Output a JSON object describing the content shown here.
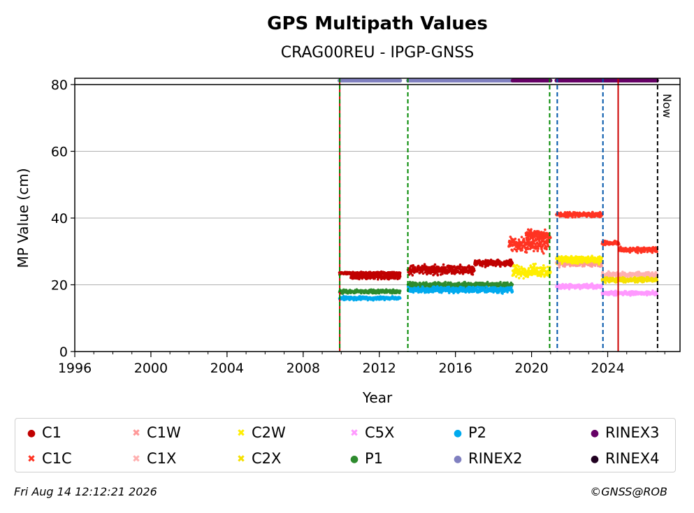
{
  "chart_data": {
    "type": "scatter",
    "title": "GPS Multipath Values",
    "subtitle": "CRAG00REU - IPGP-GNSS",
    "xlabel": "Year",
    "ylabel": "MP Value (cm)",
    "xlim": [
      1996.0,
      2027.8
    ],
    "ylim": [
      0,
      80
    ],
    "x_ticks": [
      1996,
      2000,
      2004,
      2008,
      2012,
      2016,
      2020,
      2024
    ],
    "y_ticks": [
      0,
      20,
      40,
      60,
      80
    ],
    "grid": "horizontal",
    "now_label": "Now",
    "legend_position": "bottom",
    "series": [
      {
        "name": "C1",
        "color": "#c00000",
        "marker": "dot",
        "segments": [
          [
            2009.9,
            2013.1,
            23.5,
            0.5
          ],
          [
            2010.5,
            2013.1,
            22.5,
            1.2
          ],
          [
            2013.5,
            2017.0,
            24.5,
            2.0
          ],
          [
            2017.0,
            2019.0,
            26.5,
            1.5
          ]
        ]
      },
      {
        "name": "C1C",
        "color": "#ff3322",
        "marker": "x",
        "segments": [
          [
            2018.8,
            2020.9,
            32.0,
            3.0
          ],
          [
            2019.7,
            2021.0,
            35.0,
            2.0
          ],
          [
            2021.3,
            2023.7,
            41.0,
            1.0
          ],
          [
            2023.7,
            2024.6,
            32.5,
            0.8
          ],
          [
            2024.6,
            2026.6,
            30.5,
            1.0
          ]
        ]
      },
      {
        "name": "C1W",
        "color": "#ff9999",
        "marker": "x",
        "segments": [
          [
            2021.3,
            2023.7,
            26.5,
            1.5
          ]
        ]
      },
      {
        "name": "C1X",
        "color": "#ffb0b0",
        "marker": "x",
        "segments": [
          [
            2023.7,
            2026.6,
            23.0,
            1.2
          ]
        ]
      },
      {
        "name": "C2W",
        "color": "#ffee00",
        "marker": "x",
        "segments": [
          [
            2019.0,
            2021.0,
            24.0,
            2.5
          ],
          [
            2021.3,
            2023.7,
            27.5,
            1.5
          ]
        ]
      },
      {
        "name": "C2X",
        "color": "#f5e000",
        "marker": "x",
        "segments": [
          [
            2023.7,
            2026.6,
            21.5,
            1.0
          ]
        ]
      },
      {
        "name": "C5X",
        "color": "#ff99ff",
        "marker": "x",
        "segments": [
          [
            2021.3,
            2023.7,
            19.5,
            1.0
          ],
          [
            2023.7,
            2026.6,
            17.5,
            0.8
          ]
        ]
      },
      {
        "name": "P1",
        "color": "#2e8b2e",
        "marker": "dot",
        "segments": [
          [
            2009.9,
            2013.1,
            18.0,
            0.8
          ],
          [
            2013.5,
            2019.0,
            20.0,
            1.0
          ]
        ]
      },
      {
        "name": "P2",
        "color": "#00aaee",
        "marker": "dot",
        "segments": [
          [
            2009.9,
            2013.1,
            16.0,
            0.8
          ],
          [
            2013.5,
            2019.0,
            18.5,
            1.2
          ]
        ]
      },
      {
        "name": "RINEX2",
        "color": "#8080c0",
        "marker": "dot",
        "segments": [
          [
            2009.9,
            2013.1,
            81.2,
            0
          ],
          [
            2013.5,
            2019.0,
            81.2,
            0
          ]
        ]
      },
      {
        "name": "RINEX3",
        "color": "#660066",
        "marker": "dot",
        "segments": [
          [
            2019.0,
            2021.0,
            81.2,
            0
          ],
          [
            2021.3,
            2026.6,
            81.2,
            0
          ]
        ]
      },
      {
        "name": "RINEX4",
        "color": "#200020",
        "marker": "dot",
        "segments": []
      }
    ],
    "vertical_lines": [
      {
        "x": 2009.92,
        "color": "#cc0000",
        "style": "solid"
      },
      {
        "x": 2009.92,
        "color": "#008800",
        "style": "dashed"
      },
      {
        "x": 2013.5,
        "color": "#008800",
        "style": "dashed"
      },
      {
        "x": 2020.95,
        "color": "#008800",
        "style": "dashed"
      },
      {
        "x": 2021.35,
        "color": "#0055aa",
        "style": "dashed"
      },
      {
        "x": 2023.75,
        "color": "#0055aa",
        "style": "dashed"
      },
      {
        "x": 2024.55,
        "color": "#cc0000",
        "style": "solid"
      },
      {
        "x": 2026.62,
        "color": "#000000",
        "style": "dashed"
      }
    ]
  },
  "legend": [
    {
      "label": "C1",
      "color": "#c00000",
      "glyph": "●"
    },
    {
      "label": "C1C",
      "color": "#ff3322",
      "glyph": "✖"
    },
    {
      "label": "C1W",
      "color": "#ff9999",
      "glyph": "✖"
    },
    {
      "label": "C1X",
      "color": "#ffb0b0",
      "glyph": "✖"
    },
    {
      "label": "C2W",
      "color": "#ffee00",
      "glyph": "✖"
    },
    {
      "label": "C2X",
      "color": "#f5e000",
      "glyph": "✖"
    },
    {
      "label": "C5X",
      "color": "#ff99ff",
      "glyph": "✖"
    },
    {
      "label": "P1",
      "color": "#2e8b2e",
      "glyph": "●"
    },
    {
      "label": "P2",
      "color": "#00aaee",
      "glyph": "●"
    },
    {
      "label": "RINEX2",
      "color": "#8080c0",
      "glyph": "●"
    },
    {
      "label": "RINEX3",
      "color": "#660066",
      "glyph": "●"
    },
    {
      "label": "RINEX4",
      "color": "#200020",
      "glyph": "●"
    }
  ],
  "footer": {
    "timestamp": "Fri Aug 14 12:12:21 2026",
    "copyright": "©GNSS@ROB"
  }
}
